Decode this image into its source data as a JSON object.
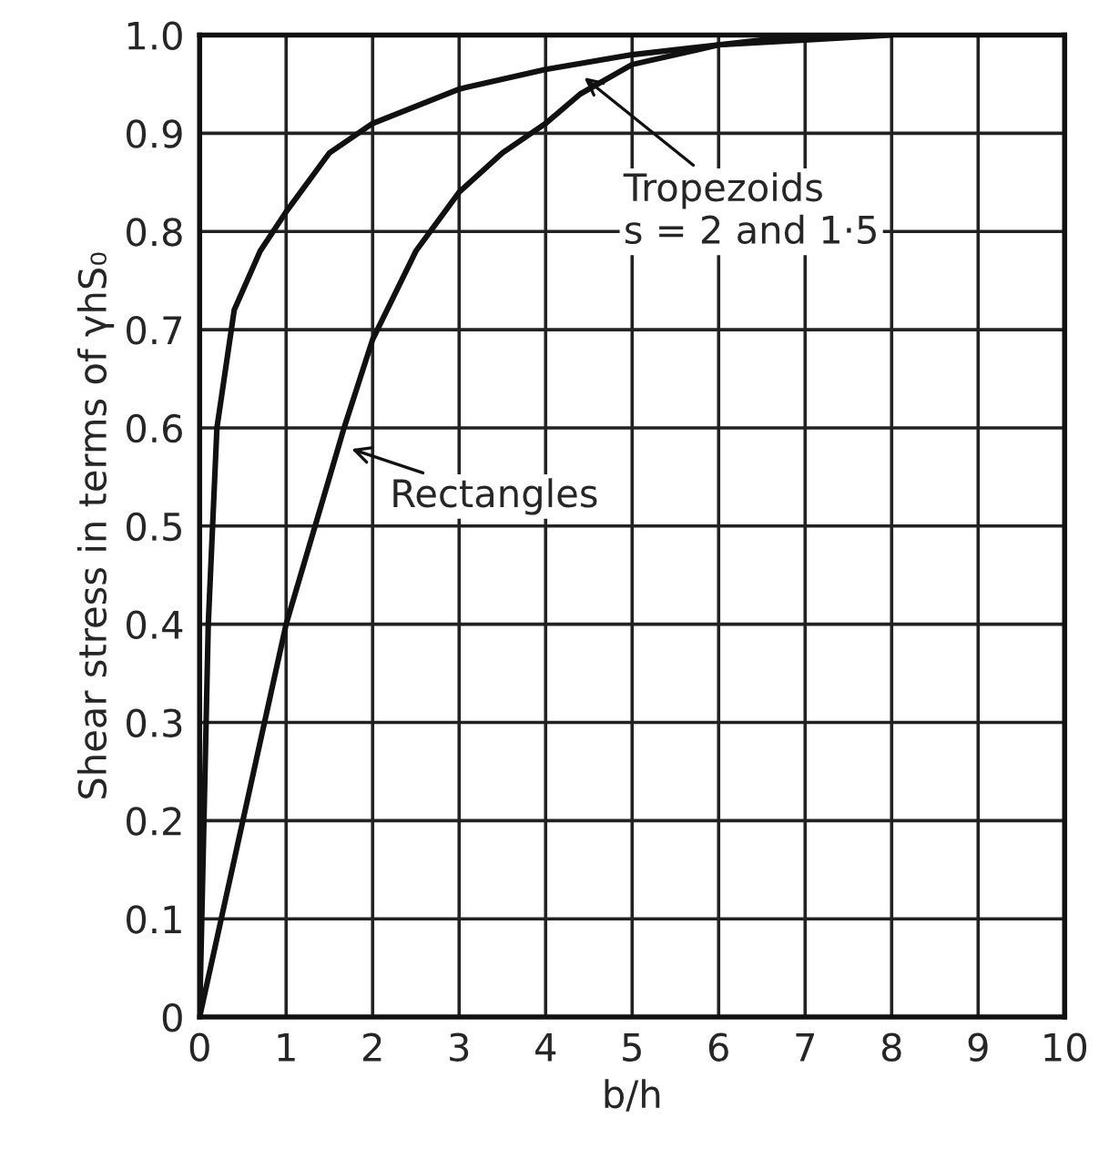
{
  "chart_data": {
    "type": "line",
    "xlabel": "b/h",
    "ylabel": "Shear stress in terms of γhS₀",
    "xlim": [
      0,
      10
    ],
    "ylim": [
      0,
      1.0
    ],
    "xticks": [
      0,
      1,
      2,
      3,
      4,
      5,
      6,
      7,
      8,
      9,
      10
    ],
    "yticks": [
      0,
      0.1,
      0.2,
      0.3,
      0.4,
      0.5,
      0.6,
      0.7,
      0.8,
      0.9,
      {
        "value": 1.0,
        "label": "1.0"
      }
    ],
    "grid": true,
    "marker": "none",
    "line_style": "solid",
    "series": [
      {
        "color": "#111111",
        "x": [
          0,
          0.05,
          0.1,
          0.2,
          0.4,
          0.7,
          1,
          1.5,
          2,
          3,
          4,
          5,
          6,
          7,
          8
        ],
        "values": [
          0,
          0.2,
          0.4,
          0.6,
          0.72,
          0.78,
          0.82,
          0.88,
          0.91,
          0.945,
          0.965,
          0.98,
          0.99,
          0.995,
          1.0
        ]
      },
      {
        "color": "#111111",
        "x": [
          0,
          0.5,
          1,
          1.67,
          2,
          2.5,
          3,
          3.5,
          4,
          4.4,
          5,
          6,
          7
        ],
        "values": [
          0,
          0.2,
          0.4,
          0.6,
          0.69,
          0.78,
          0.84,
          0.88,
          0.91,
          0.94,
          0.97,
          0.99,
          1.0
        ]
      }
    ],
    "annotations": [
      {
        "text": "Tropezoids\ns = 2 and 1·5",
        "x": 4.4,
        "y": 0.96
      },
      {
        "text": "Rectangles",
        "x": 1.7,
        "y": 0.58
      }
    ]
  }
}
